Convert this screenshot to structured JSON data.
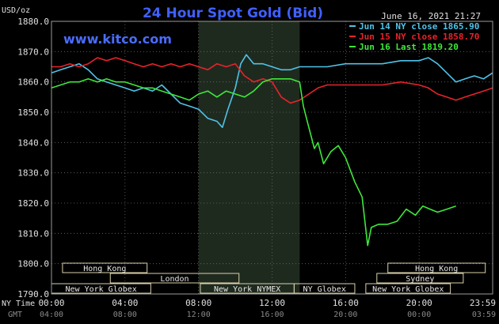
{
  "chart_data": {
    "type": "line",
    "title": "24 Hour Spot Gold (Bid)",
    "subtitle": "June 16, 2021 21:27",
    "brand": "www.kitco.com",
    "ylabel": "USD/oz",
    "ylim": [
      1790,
      1880
    ],
    "yticks": [
      "1880.0",
      "1870.0",
      "1860.0",
      "1850.0",
      "1840.0",
      "1830.0",
      "1820.0",
      "1810.0",
      "1800.0",
      "1790.0"
    ],
    "xlim": [
      0,
      24
    ],
    "xaxis": {
      "ny_label": "NY Time",
      "gmt_label": "GMT",
      "ny_ticks": [
        "00:00",
        "04:00",
        "08:00",
        "12:00",
        "16:00",
        "20:00",
        "23:59"
      ],
      "gmt_ticks": [
        "04:00",
        "08:00",
        "12:00",
        "16:00",
        "20:00",
        "00:00",
        "03:59"
      ]
    },
    "highlight_range": [
      8,
      13.5
    ],
    "grid": true,
    "legend_position": "top-right",
    "series": [
      {
        "name": "Jun 14 NY close 1865.90",
        "color": "#4fc3e8",
        "points": [
          [
            0,
            1863
          ],
          [
            0.5,
            1864
          ],
          [
            1,
            1865
          ],
          [
            1.5,
            1866
          ],
          [
            2,
            1864
          ],
          [
            2.5,
            1861
          ],
          [
            3,
            1860
          ],
          [
            3.5,
            1859
          ],
          [
            4,
            1858
          ],
          [
            4.5,
            1857
          ],
          [
            5,
            1858
          ],
          [
            5.5,
            1857
          ],
          [
            6,
            1859
          ],
          [
            6.5,
            1856
          ],
          [
            7,
            1853
          ],
          [
            7.5,
            1852
          ],
          [
            8,
            1851
          ],
          [
            8.5,
            1848
          ],
          [
            9,
            1847
          ],
          [
            9.3,
            1845
          ],
          [
            9.6,
            1851
          ],
          [
            10,
            1858
          ],
          [
            10.3,
            1866
          ],
          [
            10.6,
            1869
          ],
          [
            11,
            1866
          ],
          [
            11.5,
            1866
          ],
          [
            12,
            1865
          ],
          [
            12.5,
            1864
          ],
          [
            13,
            1864
          ],
          [
            13.5,
            1865
          ],
          [
            14,
            1865
          ],
          [
            15,
            1865
          ],
          [
            16,
            1866
          ],
          [
            17,
            1866
          ],
          [
            18,
            1866
          ],
          [
            19,
            1867
          ],
          [
            20,
            1867
          ],
          [
            20.5,
            1868
          ],
          [
            21,
            1866
          ],
          [
            21.5,
            1863
          ],
          [
            22,
            1860
          ],
          [
            22.5,
            1861
          ],
          [
            23,
            1862
          ],
          [
            23.5,
            1861
          ],
          [
            24,
            1863
          ]
        ]
      },
      {
        "name": "Jun 15 NY close 1858.70",
        "color": "#e8232a",
        "points": [
          [
            0,
            1865
          ],
          [
            0.5,
            1865
          ],
          [
            1,
            1866
          ],
          [
            1.5,
            1865
          ],
          [
            2,
            1866
          ],
          [
            2.5,
            1868
          ],
          [
            3,
            1867
          ],
          [
            3.5,
            1868
          ],
          [
            4,
            1867
          ],
          [
            4.5,
            1866
          ],
          [
            5,
            1865
          ],
          [
            5.5,
            1866
          ],
          [
            6,
            1865
          ],
          [
            6.5,
            1866
          ],
          [
            7,
            1865
          ],
          [
            7.5,
            1866
          ],
          [
            8,
            1865
          ],
          [
            8.5,
            1864
          ],
          [
            9,
            1866
          ],
          [
            9.5,
            1865
          ],
          [
            10,
            1866
          ],
          [
            10.5,
            1862
          ],
          [
            11,
            1860
          ],
          [
            11.5,
            1861
          ],
          [
            12,
            1860
          ],
          [
            12.5,
            1855
          ],
          [
            13,
            1853
          ],
          [
            13.5,
            1854
          ],
          [
            14,
            1856
          ],
          [
            14.5,
            1858
          ],
          [
            15,
            1859
          ],
          [
            16,
            1859
          ],
          [
            17,
            1859
          ],
          [
            18,
            1859
          ],
          [
            19,
            1860
          ],
          [
            20,
            1859
          ],
          [
            20.5,
            1858
          ],
          [
            21,
            1856
          ],
          [
            21.5,
            1855
          ],
          [
            22,
            1854
          ],
          [
            22.5,
            1855
          ],
          [
            23,
            1856
          ],
          [
            23.5,
            1857
          ],
          [
            24,
            1858
          ]
        ]
      },
      {
        "name": "Jun 16 Last 1819.20",
        "color": "#3ee83a",
        "points": [
          [
            0,
            1858
          ],
          [
            0.5,
            1859
          ],
          [
            1,
            1860
          ],
          [
            1.5,
            1860
          ],
          [
            2,
            1861
          ],
          [
            2.5,
            1860
          ],
          [
            3,
            1861
          ],
          [
            3.5,
            1860
          ],
          [
            4,
            1860
          ],
          [
            4.5,
            1859
          ],
          [
            5,
            1858
          ],
          [
            5.5,
            1858
          ],
          [
            6,
            1857
          ],
          [
            6.5,
            1856
          ],
          [
            7,
            1855
          ],
          [
            7.5,
            1854
          ],
          [
            8,
            1856
          ],
          [
            8.5,
            1857
          ],
          [
            9,
            1855
          ],
          [
            9.5,
            1857
          ],
          [
            10,
            1856
          ],
          [
            10.5,
            1855
          ],
          [
            11,
            1857
          ],
          [
            11.5,
            1860
          ],
          [
            12,
            1861
          ],
          [
            12.5,
            1861
          ],
          [
            13,
            1861
          ],
          [
            13.5,
            1860
          ],
          [
            13.7,
            1852
          ],
          [
            14,
            1845
          ],
          [
            14.3,
            1838
          ],
          [
            14.5,
            1840
          ],
          [
            14.8,
            1833
          ],
          [
            15.2,
            1837
          ],
          [
            15.6,
            1839
          ],
          [
            16,
            1835
          ],
          [
            16.5,
            1827
          ],
          [
            16.9,
            1822
          ],
          [
            17.2,
            1806
          ],
          [
            17.4,
            1812
          ],
          [
            17.8,
            1813
          ],
          [
            18.3,
            1813
          ],
          [
            18.8,
            1814
          ],
          [
            19.3,
            1818
          ],
          [
            19.8,
            1816
          ],
          [
            20.2,
            1819
          ],
          [
            20.6,
            1818
          ],
          [
            21,
            1817
          ],
          [
            21.5,
            1818
          ],
          [
            22,
            1819
          ]
        ]
      }
    ],
    "sessions": [
      {
        "label": "Hong Kong",
        "start": 0.6,
        "end": 5.2,
        "row": 0
      },
      {
        "label": "Hong Kong",
        "start": 18.3,
        "end": 23.6,
        "row": 0
      },
      {
        "label": "London",
        "start": 3.2,
        "end": 10.2,
        "row": 1
      },
      {
        "label": "Sydney",
        "start": 17.7,
        "end": 22.4,
        "row": 1
      },
      {
        "label": "New York Globex",
        "start": 0,
        "end": 5.4,
        "row": 2
      },
      {
        "label": "New York NYMEX",
        "start": 8.1,
        "end": 13.2,
        "row": 2
      },
      {
        "label": "NY Globex",
        "start": 13.2,
        "end": 16.5,
        "row": 2
      },
      {
        "label": "New York Globex",
        "start": 17.1,
        "end": 21.7,
        "row": 2
      }
    ]
  }
}
